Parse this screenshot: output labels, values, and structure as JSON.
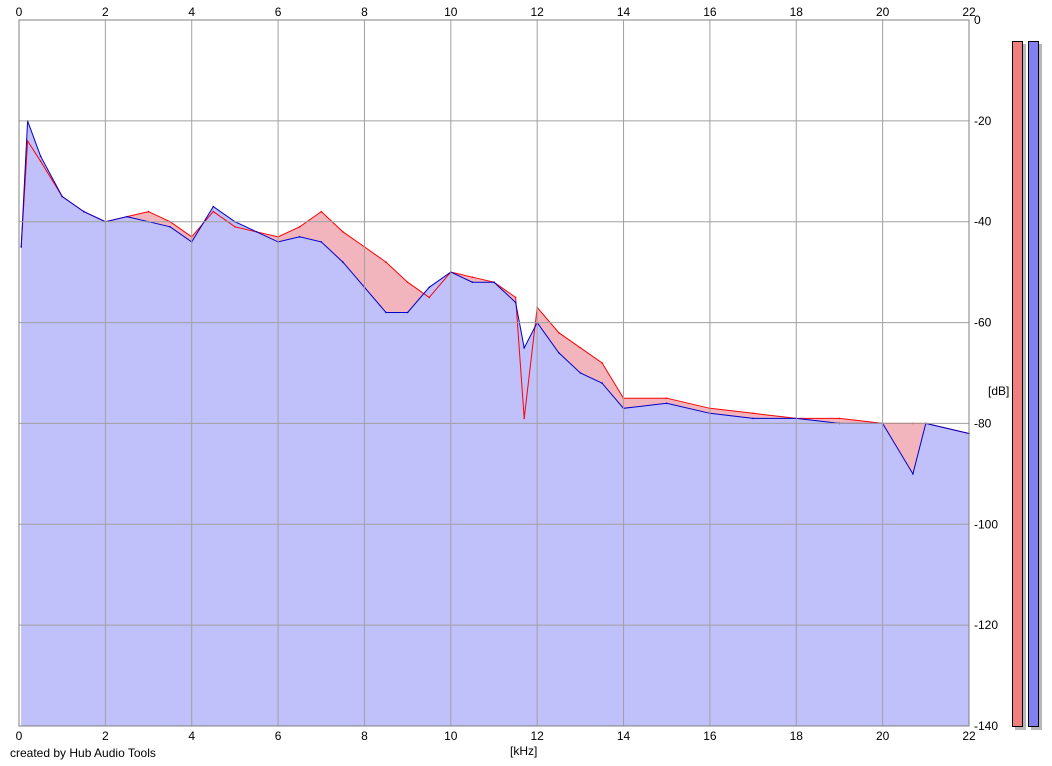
{
  "footer": "created by Hub Audio Tools",
  "colors": {
    "left_channel": "#ff0000",
    "right_channel": "#0000cc",
    "left_fill": "#f2b5bd",
    "right_fill": "#c0c0fa",
    "left_meter": "#f08080",
    "right_meter": "#8080f0",
    "grid": "#a0a0a0"
  },
  "chart_data": {
    "type": "area",
    "xlabel": "[kHz]",
    "ylabel": "[dB]",
    "xlim": [
      0,
      22
    ],
    "ylim": [
      -140,
      0
    ],
    "xticks": [
      0,
      2,
      4,
      6,
      8,
      10,
      12,
      14,
      16,
      18,
      20,
      22
    ],
    "yticks": [
      0,
      -20,
      -40,
      -60,
      -80,
      -100,
      -120,
      -140
    ],
    "ytick_labels": [
      "0",
      "-20",
      "-40",
      "-60",
      "-80",
      "-100",
      "-120",
      "-140"
    ],
    "grid": true,
    "x": [
      0.05,
      0.2,
      0.5,
      1,
      1.5,
      2,
      2.5,
      3,
      3.5,
      4,
      4.5,
      5,
      5.5,
      6,
      6.5,
      7,
      7.5,
      8,
      8.5,
      9,
      9.5,
      10,
      10.5,
      11,
      11.5,
      11.7,
      12,
      12.5,
      13,
      13.5,
      14,
      15,
      16,
      17,
      18,
      19,
      20,
      20.7,
      21,
      22
    ],
    "series": [
      {
        "channel": "left",
        "values": [
          -45,
          -24,
          -28,
          -35,
          -38,
          -40,
          -39,
          -38,
          -40,
          -43,
          -38,
          -41,
          -42,
          -43,
          -41,
          -38,
          -42,
          -45,
          -48,
          -52,
          -55,
          -50,
          -51,
          -52,
          -55,
          -79,
          -57,
          -62,
          -65,
          -68,
          -75,
          -75,
          -77,
          -78,
          -79,
          -79,
          -80,
          -80,
          -80,
          -82
        ]
      },
      {
        "channel": "right",
        "values": [
          -45,
          -20,
          -27,
          -35,
          -38,
          -40,
          -39,
          -40,
          -41,
          -44,
          -37,
          -40,
          -42,
          -44,
          -43,
          -44,
          -48,
          -53,
          -58,
          -58,
          -53,
          -50,
          -52,
          -52,
          -56,
          -65,
          -60,
          -66,
          -70,
          -72,
          -77,
          -76,
          -78,
          -79,
          -79,
          -80,
          -80,
          -90,
          -80,
          -82
        ]
      }
    ]
  }
}
